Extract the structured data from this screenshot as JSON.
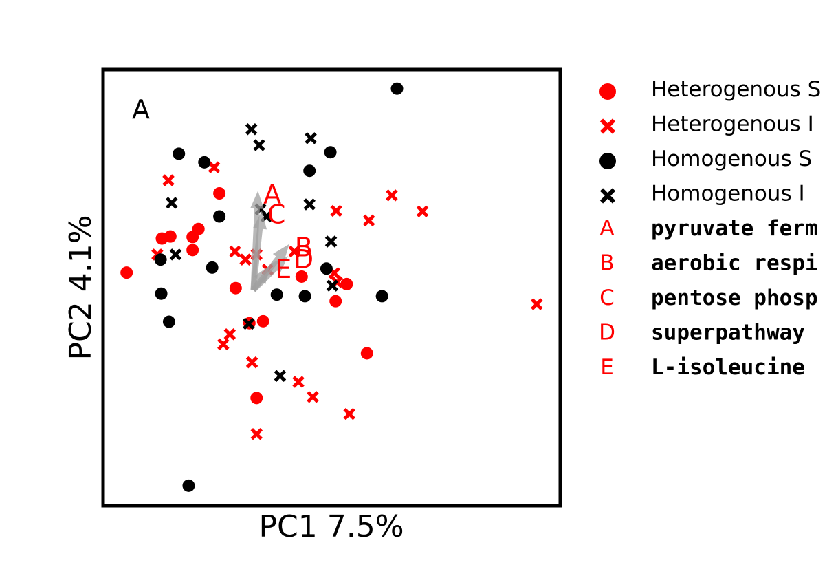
{
  "chart_data": {
    "type": "scatter",
    "panel_label": "A",
    "xlabel": "PC1 7.5%",
    "ylabel": "PC2 4.1%",
    "xlim": [
      -0.33,
      0.37
    ],
    "ylim": [
      -0.47,
      0.4
    ],
    "grid": false,
    "ticks_shown": false,
    "legend_position": "outside-right",
    "colors": {
      "heterogenous": "#ff0000",
      "homogenous": "#000000",
      "loading_arrow": "#a0a0a0"
    },
    "series": [
      {
        "name": "Heterogenous S",
        "marker": "circle",
        "color": "#ff0000",
        "points": [
          {
            "x": -0.294,
            "y": -0.005
          },
          {
            "x": -0.24,
            "y": 0.063
          },
          {
            "x": -0.227,
            "y": 0.067
          },
          {
            "x": -0.193,
            "y": 0.066
          },
          {
            "x": -0.184,
            "y": 0.082
          },
          {
            "x": -0.193,
            "y": 0.04
          },
          {
            "x": -0.152,
            "y": 0.153
          },
          {
            "x": -0.127,
            "y": -0.036
          },
          {
            "x": -0.106,
            "y": -0.106
          },
          {
            "x": -0.085,
            "y": -0.102
          },
          {
            "x": -0.095,
            "y": -0.255
          },
          {
            "x": -0.026,
            "y": -0.013
          },
          {
            "x": 0.026,
            "y": -0.062
          },
          {
            "x": 0.043,
            "y": -0.028
          },
          {
            "x": 0.074,
            "y": -0.166
          }
        ]
      },
      {
        "name": "Heterogenous I",
        "marker": "x",
        "color": "#ff0000",
        "points": [
          {
            "x": -0.247,
            "y": 0.031
          },
          {
            "x": -0.23,
            "y": 0.179
          },
          {
            "x": -0.16,
            "y": 0.205
          },
          {
            "x": -0.128,
            "y": 0.037
          },
          {
            "x": -0.112,
            "y": 0.021
          },
          {
            "x": -0.078,
            "y": 0.001
          },
          {
            "x": -0.095,
            "y": 0.031
          },
          {
            "x": -0.037,
            "y": 0.037
          },
          {
            "x": -0.136,
            "y": -0.128
          },
          {
            "x": -0.146,
            "y": -0.148
          },
          {
            "x": -0.102,
            "y": -0.184
          },
          {
            "x": -0.031,
            "y": -0.223
          },
          {
            "x": -0.009,
            "y": -0.253
          },
          {
            "x": 0.047,
            "y": -0.287
          },
          {
            "x": -0.095,
            "y": -0.327
          },
          {
            "x": 0.024,
            "y": -0.006
          },
          {
            "x": 0.027,
            "y": 0.118
          },
          {
            "x": 0.077,
            "y": 0.099
          },
          {
            "x": 0.112,
            "y": 0.149
          },
          {
            "x": 0.159,
            "y": 0.117
          },
          {
            "x": 0.334,
            "y": -0.068
          },
          {
            "x": 0.028,
            "y": -0.024
          }
        ]
      },
      {
        "name": "Homogenous S",
        "marker": "circle",
        "color": "#000000",
        "points": [
          {
            "x": 0.12,
            "y": 0.362
          },
          {
            "x": -0.214,
            "y": 0.232
          },
          {
            "x": -0.175,
            "y": 0.215
          },
          {
            "x": -0.152,
            "y": 0.107
          },
          {
            "x": -0.242,
            "y": 0.021
          },
          {
            "x": -0.163,
            "y": 0.005
          },
          {
            "x": -0.241,
            "y": -0.047
          },
          {
            "x": -0.229,
            "y": -0.103
          },
          {
            "x": -0.199,
            "y": -0.43
          },
          {
            "x": -0.064,
            "y": -0.049
          },
          {
            "x": -0.021,
            "y": -0.052
          },
          {
            "x": -0.014,
            "y": 0.198
          },
          {
            "x": 0.018,
            "y": 0.235
          },
          {
            "x": 0.012,
            "y": 0.003
          },
          {
            "x": 0.097,
            "y": -0.052
          }
        ]
      },
      {
        "name": "Homogenous I",
        "marker": "x",
        "color": "#000000",
        "points": [
          {
            "x": -0.103,
            "y": 0.281
          },
          {
            "x": -0.091,
            "y": 0.249
          },
          {
            "x": -0.012,
            "y": 0.263
          },
          {
            "x": -0.225,
            "y": 0.134
          },
          {
            "x": -0.219,
            "y": 0.031
          },
          {
            "x": -0.089,
            "y": 0.121
          },
          {
            "x": -0.08,
            "y": 0.107
          },
          {
            "x": -0.014,
            "y": 0.131
          },
          {
            "x": 0.019,
            "y": 0.057
          },
          {
            "x": 0.021,
            "y": -0.031
          },
          {
            "x": -0.107,
            "y": -0.107
          },
          {
            "x": -0.059,
            "y": -0.211
          }
        ]
      }
    ],
    "loading_vectors": {
      "origin": {
        "x": -0.1,
        "y": -0.04
      },
      "vectors": [
        {
          "label": "A",
          "pathway": "pyruvate ferm",
          "x": -0.093,
          "y": 0.158
        },
        {
          "label": "B",
          "pathway": "aerobic respi",
          "x": -0.045,
          "y": 0.052
        },
        {
          "label": "C",
          "pathway": "pentose phosp",
          "x": -0.087,
          "y": 0.118
        },
        {
          "label": "D",
          "pathway": "superpathway",
          "x": -0.047,
          "y": 0.028
        },
        {
          "label": "E",
          "pathway": "L-isoleucine",
          "x": -0.075,
          "y": 0.009
        }
      ]
    }
  }
}
